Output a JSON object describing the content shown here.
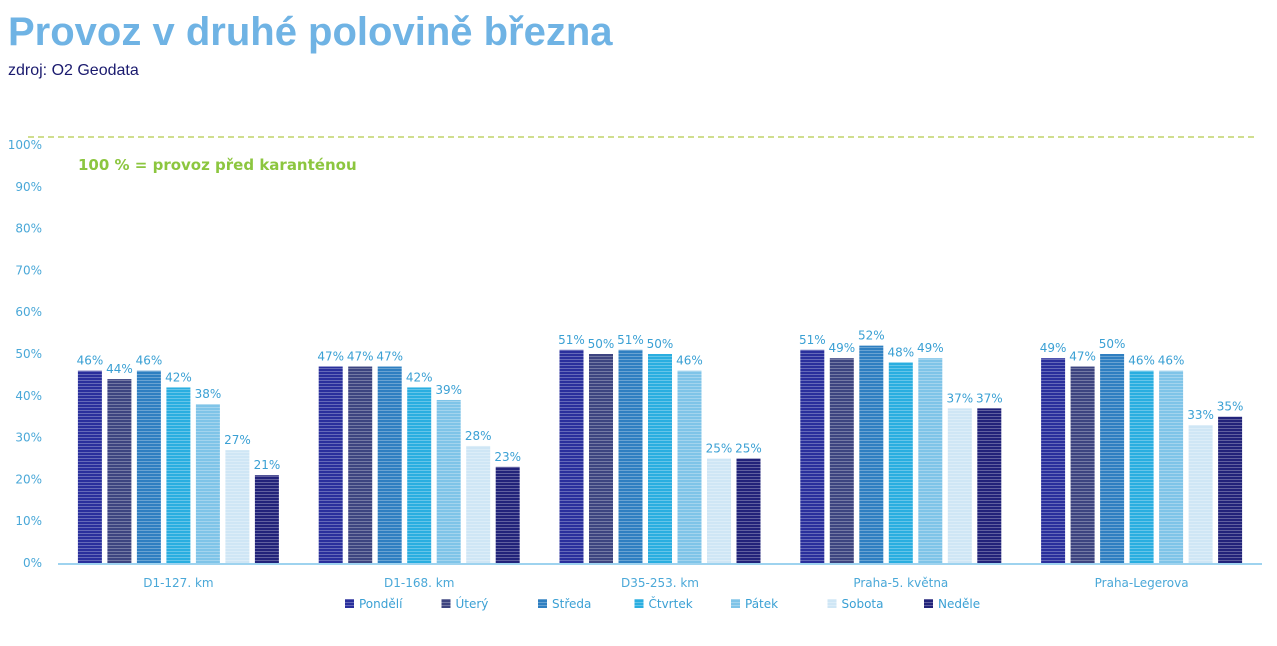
{
  "title": "Provoz v druhé polovině března",
  "subtitle": "zdroj: O2 Geodata",
  "chart_data": {
    "type": "bar",
    "categories": [
      "D1-127. km",
      "D1-168. km",
      "D35-253. km",
      "Praha-5. května",
      "Praha-Legerova"
    ],
    "series": [
      {
        "name": "Pondělí",
        "values": [
          46,
          47,
          51,
          51,
          49
        ],
        "color": "#2a2f9c"
      },
      {
        "name": "Úterý",
        "values": [
          44,
          47,
          50,
          49,
          47
        ],
        "color": "#3d4480"
      },
      {
        "name": "Středa",
        "values": [
          46,
          47,
          51,
          52,
          50
        ],
        "color": "#2f7fc1"
      },
      {
        "name": "Čtvrtek",
        "values": [
          42,
          42,
          50,
          48,
          46
        ],
        "color": "#2aaee0"
      },
      {
        "name": "Pátek",
        "values": [
          38,
          39,
          46,
          49,
          46
        ],
        "color": "#7fc4e8"
      },
      {
        "name": "Sobota",
        "values": [
          27,
          28,
          25,
          37,
          33
        ],
        "color": "#cfe6f5"
      },
      {
        "name": "Neděle",
        "values": [
          21,
          23,
          25,
          37,
          35
        ],
        "color": "#22237a"
      }
    ],
    "data_labels": [
      [
        "46%",
        "47%",
        "51%",
        "51%",
        "49%"
      ],
      [
        "44%",
        "47%",
        "50%",
        "49%",
        "47%"
      ],
      [
        "46%",
        "47%",
        "51%",
        "52%",
        "50%"
      ],
      [
        "42%",
        "42%",
        "50%",
        "48%",
        "46%"
      ],
      [
        "38%",
        "39%",
        "46%",
        "49%",
        "46%"
      ],
      [
        "27%",
        "28%",
        "25%",
        "37%",
        "33%"
      ],
      [
        "21%",
        "23%",
        "25%",
        "37%",
        "35%"
      ]
    ],
    "yticks": [
      "0%",
      "10%",
      "20%",
      "30%",
      "40%",
      "50%",
      "60%",
      "70%",
      "80%",
      "90%",
      "100%"
    ],
    "ylim": [
      0,
      100
    ],
    "reference_line": {
      "value": 100,
      "color": "#b5c94a",
      "style": "dashed"
    },
    "annotation": "100 % = provoz před karanténou",
    "annotation_color": "#8cc63f",
    "axis_color": "#9ed3ef",
    "label_color": "#3aa0d4",
    "legend_position": "bottom",
    "grid": false
  }
}
